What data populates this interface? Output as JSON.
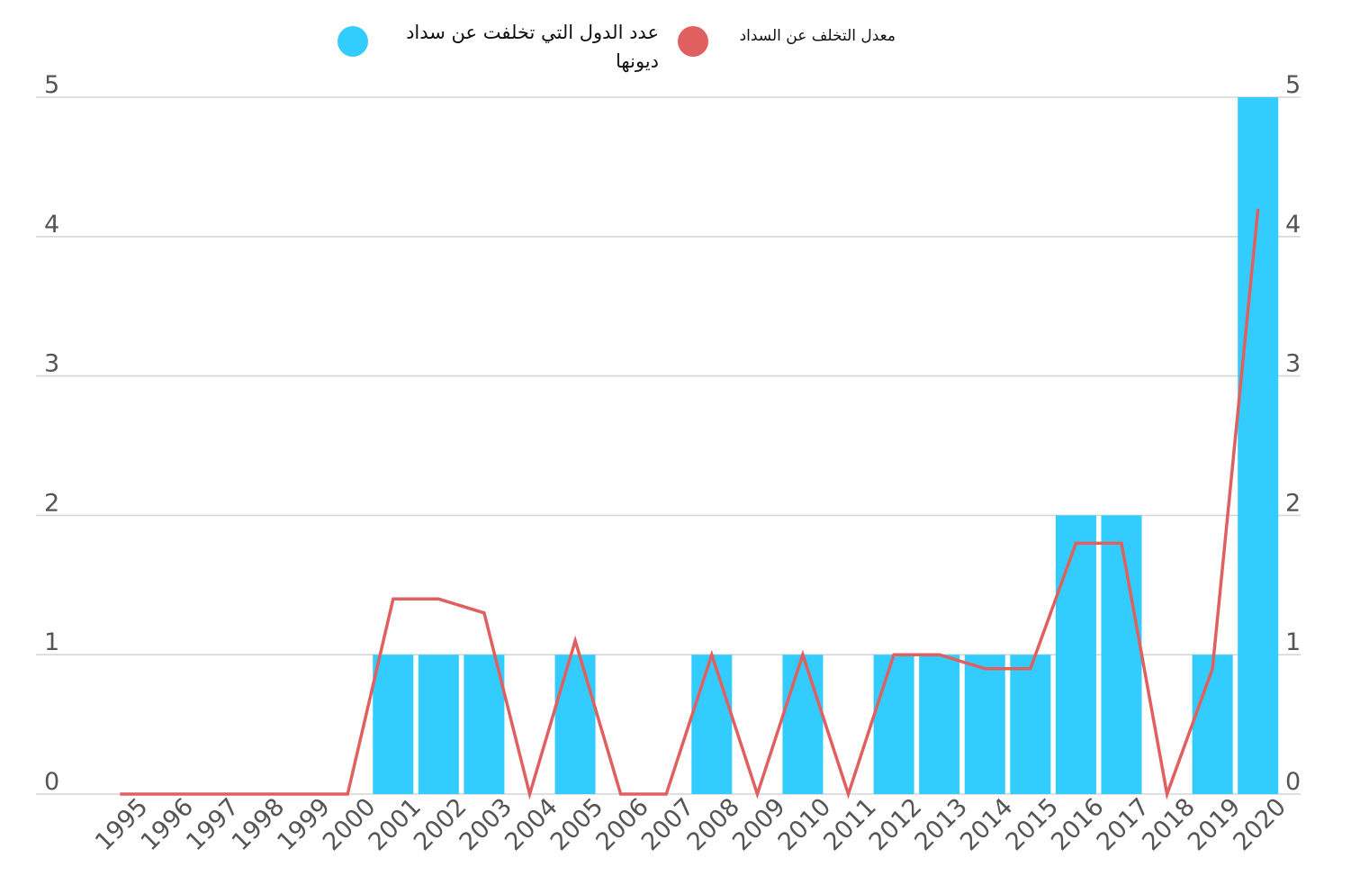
{
  "chart_data": {
    "type": "bar",
    "categories": [
      "1995",
      "1996",
      "1997",
      "1998",
      "1999",
      "2000",
      "2001",
      "2002",
      "2003",
      "2004",
      "2005",
      "2006",
      "2007",
      "2008",
      "2009",
      "2010",
      "2011",
      "2012",
      "2013",
      "2014",
      "2015",
      "2016",
      "2017",
      "2018",
      "2019",
      "2020"
    ],
    "series": [
      {
        "name": "عدد الدول التي تخلفت عن سداد ديونها",
        "type": "bar",
        "color": "#33ccff",
        "values": [
          0,
          0,
          0,
          0,
          0,
          0,
          1,
          1,
          1,
          0,
          1,
          0,
          0,
          1,
          0,
          1,
          0,
          1,
          1,
          1,
          1,
          2,
          2,
          0,
          1,
          5
        ]
      },
      {
        "name": "معدل التخلف عن السداد",
        "type": "line",
        "color": "#e06060",
        "values": [
          0,
          0,
          0,
          0,
          0,
          0,
          1.4,
          1.4,
          1.3,
          0,
          1.1,
          0,
          0,
          1.0,
          0,
          1.0,
          0,
          1.0,
          1.0,
          0.9,
          0.9,
          1.8,
          1.8,
          0,
          0.9,
          4.2
        ]
      }
    ],
    "left_axis": {
      "ticks": [
        "0",
        "1",
        "2",
        "3",
        "4",
        "5"
      ],
      "ylim": [
        0,
        5
      ]
    },
    "right_axis": {
      "ticks": [
        "0",
        "1",
        "2",
        "3",
        "4",
        "5"
      ],
      "ylim": [
        0,
        5
      ]
    },
    "grid": true,
    "legend_position": "top-center",
    "title": "",
    "xlabel": "",
    "ylabel": ""
  }
}
